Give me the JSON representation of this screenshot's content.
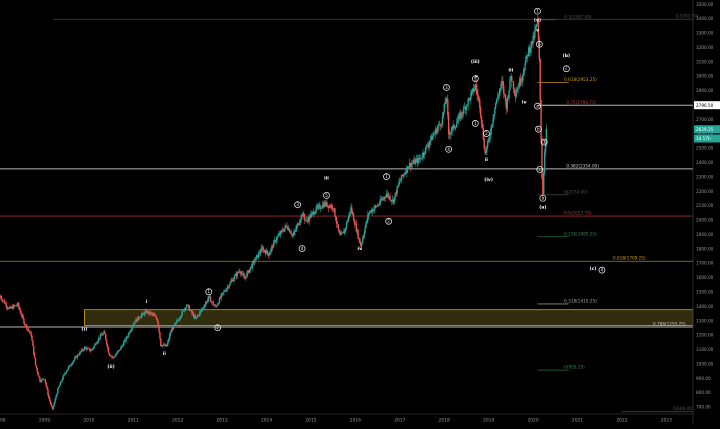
{
  "chart_data": {
    "type": "candlestick",
    "title": "",
    "xlabel": "",
    "ylabel": "",
    "ylim": [
      650,
      3500
    ],
    "xlim": [
      2008.0,
      2023.6
    ],
    "grid": false,
    "price_axis": {
      "ticks": [
        3500,
        3400,
        3300,
        3200,
        3100,
        3000,
        2900,
        2800,
        2700,
        2600,
        2500,
        2400,
        2300,
        2200,
        2100,
        2000,
        1900,
        1800,
        1700,
        1600,
        1500,
        1400,
        1300,
        1200,
        1100,
        1000,
        900,
        800,
        700
      ],
      "labels": [
        "3500.00",
        "3400.00",
        "3300.00",
        "3200.00",
        "3100.00",
        "3000.00",
        "2900.00",
        "2800.00",
        "2700.00",
        "2600.00",
        "2500.00",
        "2400.00",
        "2300.00",
        "2200.00",
        "2100.00",
        "2000.00",
        "1900.00",
        "1800.00",
        "1700.00",
        "1600.00",
        "1500.00",
        "1400.00",
        "1300.00",
        "1200.00",
        "1100.00",
        "1000.00",
        "900.00",
        "800.00",
        "700.00"
      ]
    },
    "time_axis": {
      "ticks": [
        2008,
        2009,
        2010,
        2011,
        2012,
        2013,
        2014,
        2015,
        2016,
        2017,
        2018,
        2019,
        2020,
        2021,
        2022,
        2023
      ],
      "labels": [
        "2008",
        "2009",
        "2010",
        "2011",
        "2012",
        "2013",
        "2014",
        "2015",
        "2016",
        "2017",
        "2018",
        "2019",
        "2020",
        "2021",
        "2022",
        "2023"
      ]
    },
    "price_markers": [
      {
        "value": 2796.5,
        "label": "2796.50",
        "bg": "#ffffff",
        "fg": "#000000"
      },
      {
        "value": 2629.3,
        "label": "2629.25",
        "bg": "#26a69a",
        "fg": "#ffffff"
      },
      {
        "value": 2565,
        "label": "1d 17h",
        "bg": "#26a69a",
        "fg": "#ffffff"
      }
    ],
    "levels": [
      {
        "price": 3394,
        "label": "1(3393.50)",
        "color": "#555555",
        "x_from": 2009.2,
        "x_to": 2023.6,
        "label_at": 2023.2,
        "emph": false
      },
      {
        "price": 3390,
        "label": "0.3(3397.00)",
        "color": "#555555",
        "x_from": 2020.1,
        "x_to": 2020.5,
        "label_at": 2020.7,
        "emph": false
      },
      {
        "price": 2954,
        "label": "0.618(2953.25)",
        "color": "#d4a017",
        "x_from": 2020.1,
        "x_to": 2020.8,
        "label_at": 2020.7,
        "emph": false
      },
      {
        "price": 2796,
        "label": "0.75(2796.75)",
        "color": "#c0392b",
        "x_from": 2020.1,
        "x_to": 2020.8,
        "label_at": 2020.75,
        "emph": false
      },
      {
        "price": 2796.5,
        "label": "",
        "color": "#cccccc",
        "x_from": 2020.1,
        "x_to": 2023.6,
        "label_at": 2020.75,
        "emph": true
      },
      {
        "price": 2354,
        "label": "0.382(2354.00)",
        "color": "#cccccc",
        "x_from": 2008.0,
        "x_to": 2023.6,
        "label_at": 2020.75,
        "emph": true
      },
      {
        "price": 2174,
        "label": "0(2174.00)",
        "color": "#555555",
        "x_from": 2020.1,
        "x_to": 2020.8,
        "label_at": 2020.7,
        "emph": false
      },
      {
        "price": 2026,
        "label": "0.5(2027.75)",
        "color": "#c0392b",
        "x_from": 2008.0,
        "x_to": 2023.6,
        "label_at": 2020.7,
        "emph": false
      },
      {
        "price": 1882,
        "label": "0.236(1885.25)",
        "color": "#2e8b57",
        "x_from": 2020.1,
        "x_to": 2020.8,
        "label_at": 2020.7,
        "emph": false
      },
      {
        "price": 1712,
        "label": "0.618(1709.25)",
        "color": "#d4a017",
        "x_from": 2008.0,
        "x_to": 2023.6,
        "label_at": 2021.8,
        "emph": false
      },
      {
        "price": 1415,
        "label": "0.318(1410.25)",
        "color": "#aaaaaa",
        "x_from": 2020.1,
        "x_to": 2020.8,
        "label_at": 2020.7,
        "emph": false
      },
      {
        "price": 1255,
        "label": "0.786(1255.25)",
        "color": "#cccccc",
        "x_from": 2008.0,
        "x_to": 2023.6,
        "label_at": 2022.7,
        "emph": true
      },
      {
        "price": 955,
        "label": "0(955.25)",
        "color": "#2e8b57",
        "x_from": 2020.1,
        "x_to": 2020.8,
        "label_at": 2020.7,
        "emph": false
      },
      {
        "price": 666,
        "label": "0(666.00)",
        "color": "#555555",
        "x_from": 2022.0,
        "x_to": 2023.6,
        "label_at": 2023.15,
        "emph": false
      }
    ],
    "zone": {
      "x_from": 2009.9,
      "x_to": 2023.6,
      "top": 1375,
      "bottom": 1265,
      "fill": "#3a3410",
      "stroke": "#d4a017"
    },
    "series": {
      "path": [
        [
          2008.0,
          1470
        ],
        [
          2008.2,
          1380
        ],
        [
          2008.4,
          1410
        ],
        [
          2008.55,
          1280
        ],
        [
          2008.7,
          1200
        ],
        [
          2008.8,
          990
        ],
        [
          2008.9,
          880
        ],
        [
          2009.0,
          900
        ],
        [
          2009.1,
          760
        ],
        [
          2009.18,
          680
        ],
        [
          2009.3,
          820
        ],
        [
          2009.45,
          930
        ],
        [
          2009.6,
          1000
        ],
        [
          2009.75,
          1060
        ],
        [
          2009.9,
          1110
        ],
        [
          2010.05,
          1090
        ],
        [
          2010.25,
          1190
        ],
        [
          2010.35,
          1215
        ],
        [
          2010.45,
          1070
        ],
        [
          2010.55,
          1040
        ],
        [
          2010.7,
          1100
        ],
        [
          2010.85,
          1180
        ],
        [
          2011.0,
          1280
        ],
        [
          2011.15,
          1330
        ],
        [
          2011.3,
          1360
        ],
        [
          2011.45,
          1340
        ],
        [
          2011.55,
          1300
        ],
        [
          2011.62,
          1130
        ],
        [
          2011.75,
          1120
        ],
        [
          2011.85,
          1230
        ],
        [
          2012.0,
          1300
        ],
        [
          2012.2,
          1410
        ],
        [
          2012.4,
          1310
        ],
        [
          2012.55,
          1380
        ],
        [
          2012.7,
          1460
        ],
        [
          2012.85,
          1390
        ],
        [
          2013.0,
          1480
        ],
        [
          2013.2,
          1570
        ],
        [
          2013.4,
          1650
        ],
        [
          2013.5,
          1590
        ],
        [
          2013.7,
          1700
        ],
        [
          2013.9,
          1800
        ],
        [
          2014.05,
          1760
        ],
        [
          2014.2,
          1860
        ],
        [
          2014.45,
          1960
        ],
        [
          2014.6,
          1890
        ],
        [
          2014.8,
          2040
        ],
        [
          2014.9,
          1990
        ],
        [
          2015.1,
          2070
        ],
        [
          2015.3,
          2110
        ],
        [
          2015.5,
          2090
        ],
        [
          2015.65,
          1880
        ],
        [
          2015.75,
          1920
        ],
        [
          2015.9,
          2080
        ],
        [
          2016.05,
          1900
        ],
        [
          2016.12,
          1820
        ],
        [
          2016.3,
          2050
        ],
        [
          2016.5,
          2100
        ],
        [
          2016.7,
          2180
        ],
        [
          2016.85,
          2130
        ],
        [
          2017.0,
          2270
        ],
        [
          2017.2,
          2380
        ],
        [
          2017.45,
          2420
        ],
        [
          2017.7,
          2560
        ],
        [
          2017.95,
          2690
        ],
        [
          2018.05,
          2870
        ],
        [
          2018.1,
          2600
        ],
        [
          2018.25,
          2660
        ],
        [
          2018.5,
          2800
        ],
        [
          2018.7,
          2930
        ],
        [
          2018.8,
          2800
        ],
        [
          2018.92,
          2460
        ],
        [
          2019.0,
          2550
        ],
        [
          2019.15,
          2800
        ],
        [
          2019.3,
          2950
        ],
        [
          2019.4,
          2790
        ],
        [
          2019.5,
          3000
        ],
        [
          2019.6,
          2880
        ],
        [
          2019.75,
          3000
        ],
        [
          2019.9,
          3180
        ],
        [
          2020.0,
          3250
        ],
        [
          2020.1,
          3380
        ],
        [
          2020.14,
          3100
        ],
        [
          2020.17,
          2700
        ],
        [
          2020.2,
          2300
        ],
        [
          2020.22,
          2190
        ],
        [
          2020.26,
          2480
        ],
        [
          2020.3,
          2630
        ]
      ],
      "up_color": "#26a69a",
      "down_color": "#ef5350"
    },
    "wave_labels": [
      {
        "text": "(i)",
        "x": 2009.9,
        "y": 1230,
        "circle": false
      },
      {
        "text": "(ii)",
        "x": 2010.5,
        "y": 970,
        "circle": false
      },
      {
        "text": "i",
        "x": 2011.3,
        "y": 1420,
        "circle": false
      },
      {
        "text": "ii",
        "x": 2011.7,
        "y": 1060,
        "circle": false
      },
      {
        "text": "1",
        "x": 2012.7,
        "y": 1500,
        "circle": true
      },
      {
        "text": "2",
        "x": 2012.9,
        "y": 1250,
        "circle": true
      },
      {
        "text": "3",
        "x": 2014.7,
        "y": 2105,
        "circle": true
      },
      {
        "text": "4",
        "x": 2014.8,
        "y": 1800,
        "circle": true
      },
      {
        "text": "5",
        "x": 2015.35,
        "y": 2170,
        "circle": true
      },
      {
        "text": "iii",
        "x": 2015.35,
        "y": 2280,
        "circle": false
      },
      {
        "text": "iv",
        "x": 2016.1,
        "y": 1790,
        "circle": false
      },
      {
        "text": "1",
        "x": 2016.7,
        "y": 2300,
        "circle": true
      },
      {
        "text": "2",
        "x": 2016.75,
        "y": 1990,
        "circle": true
      },
      {
        "text": "(iii)",
        "x": 2018.7,
        "y": 3090,
        "circle": false
      },
      {
        "text": "v",
        "x": 2018.72,
        "y": 2990,
        "circle": false
      },
      {
        "text": "3",
        "x": 2018.05,
        "y": 2920,
        "circle": true
      },
      {
        "text": "4",
        "x": 2018.1,
        "y": 2490,
        "circle": true
      },
      {
        "text": "5",
        "x": 2018.7,
        "y": 2980,
        "circle": true
      },
      {
        "text": "1",
        "x": 2018.7,
        "y": 2670,
        "circle": true
      },
      {
        "text": "2",
        "x": 2018.95,
        "y": 2600,
        "circle": true
      },
      {
        "text": "ii",
        "x": 2018.95,
        "y": 2410,
        "circle": false
      },
      {
        "text": "(iv)",
        "x": 2019.0,
        "y": 2270,
        "circle": false
      },
      {
        "text": "iii",
        "x": 2019.5,
        "y": 3030,
        "circle": false
      },
      {
        "text": "iv",
        "x": 2019.8,
        "y": 2810,
        "circle": false
      },
      {
        "text": "1",
        "x": 2020.1,
        "y": 3450,
        "circle": true
      },
      {
        "text": "(v)",
        "x": 2020.1,
        "y": 3380,
        "circle": false
      },
      {
        "text": "v",
        "x": 2020.1,
        "y": 3310,
        "circle": false
      },
      {
        "text": "b",
        "x": 2020.14,
        "y": 3220,
        "circle": true
      },
      {
        "text": "(b)",
        "x": 2020.75,
        "y": 3130,
        "circle": false
      },
      {
        "text": "c",
        "x": 2020.75,
        "y": 3050,
        "circle": true
      },
      {
        "text": "a",
        "x": 2020.1,
        "y": 2790,
        "circle": true
      },
      {
        "text": "b",
        "x": 2020.12,
        "y": 2630,
        "circle": true
      },
      {
        "text": "c",
        "x": 2020.15,
        "y": 2350,
        "circle": true
      },
      {
        "text": "3",
        "x": 2020.25,
        "y": 2540,
        "circle": true
      },
      {
        "text": "a",
        "x": 2020.22,
        "y": 2150,
        "circle": true
      },
      {
        "text": "(a)",
        "x": 2020.22,
        "y": 2080,
        "circle": false
      },
      {
        "text": "(c)",
        "x": 2021.35,
        "y": 1650,
        "circle": false
      },
      {
        "text": "4",
        "x": 2021.55,
        "y": 1650,
        "circle": true
      }
    ]
  }
}
